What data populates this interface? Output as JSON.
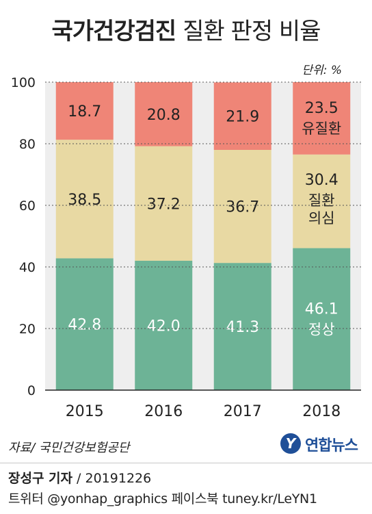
{
  "title": {
    "bold": "국가건강검진",
    "light": "질환 판정 비율"
  },
  "unit": "단위: %",
  "chart_data": {
    "type": "bar",
    "stacked": true,
    "categories": [
      "2015",
      "2016",
      "2017",
      "2018"
    ],
    "series": [
      {
        "name": "정상",
        "values": [
          42.8,
          42.0,
          41.3,
          46.1
        ],
        "color": "#6db396",
        "label_color": "#ffffff"
      },
      {
        "name": "질환 의심",
        "values": [
          38.5,
          37.2,
          36.7,
          30.4
        ],
        "color": "#e8d9a3",
        "label_color": "#222222"
      },
      {
        "name": "유질환",
        "values": [
          18.7,
          20.8,
          21.9,
          23.5
        ],
        "color": "#ef8577",
        "label_color": "#222222"
      }
    ],
    "inline_labels": {
      "정상": [
        "정상"
      ],
      "질환 의심": [
        "질환",
        "의심"
      ],
      "유질환": [
        "유질환"
      ]
    },
    "ylim": [
      0,
      100
    ],
    "yticks": [
      0,
      20,
      40,
      60,
      80,
      100
    ],
    "grid": true,
    "background_bands": "#eeeeee"
  },
  "source": "자료/ 국민건강보험공단",
  "logo": {
    "icon": "Y",
    "text": "연합뉴스"
  },
  "credit": {
    "author": "장성구 기자",
    "date": " / 20191226"
  },
  "social": "트위터 @yonhap_graphics  페이스북 tuney.kr/LeYN1"
}
